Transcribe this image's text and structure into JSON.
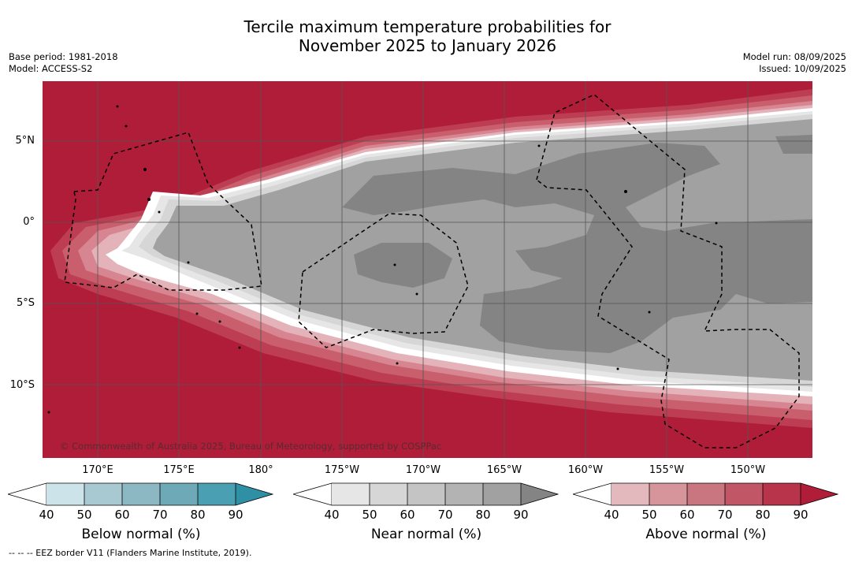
{
  "title_line1": "Tercile maximum temperature probabilities for",
  "title_line2": "November 2025 to January 2026",
  "meta_left": [
    "Base period: 1981-2018",
    "Model: ACCESS-S2"
  ],
  "meta_right": [
    "Model run: 08/09/2025",
    "Issued: 10/09/2025"
  ],
  "lat_labels": [
    "5°N",
    "0°",
    "5°S",
    "10°S"
  ],
  "lon_labels": [
    "170°E",
    "175°E",
    "180°",
    "175°W",
    "170°W",
    "165°W",
    "160°W",
    "155°W",
    "150°W"
  ],
  "copyright": "© Commonwealth of Australia 2025, Bureau of Meteorology, supported by COSPPac",
  "footer": "--  --  -- EEZ border V11 (Flanders Marine Institute, 2019).",
  "colorbars": [
    {
      "title": "Below normal (%)",
      "ticks": [
        "40",
        "50",
        "60",
        "70",
        "80",
        "90"
      ],
      "colors": [
        "#cde3ea",
        "#a8c9d1",
        "#8cb8c4",
        "#6ea9b8",
        "#4aa0b2",
        "#2f8fa5"
      ]
    },
    {
      "title": "Near normal (%)",
      "ticks": [
        "40",
        "50",
        "60",
        "70",
        "80",
        "90"
      ],
      "colors": [
        "#e6e6e6",
        "#d6d6d6",
        "#c4c4c4",
        "#b3b3b3",
        "#a1a1a1",
        "#848484"
      ]
    },
    {
      "title": "Above normal (%)",
      "ticks": [
        "40",
        "50",
        "60",
        "70",
        "80",
        "90"
      ],
      "colors": [
        "#e3b9be",
        "#d6959b",
        "#ca7680",
        "#c15666",
        "#b8344a",
        "#b01d39"
      ]
    }
  ],
  "colors": {
    "above90": "#b01d39",
    "near60": "#a1a1a1",
    "near90": "#848484"
  }
}
